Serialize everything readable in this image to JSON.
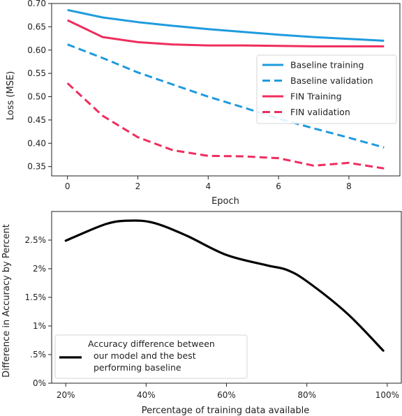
{
  "chart_data": [
    {
      "type": "line",
      "xlabel": "Epoch",
      "ylabel": "Loss (MSE)",
      "xlim": [
        -0.45,
        9.45
      ],
      "ylim": [
        0.33,
        0.7
      ],
      "x_ticks": [
        0,
        2,
        4,
        6,
        8
      ],
      "y_ticks": [
        "0.35",
        "0.40",
        "0.45",
        "0.50",
        "0.55",
        "0.60",
        "0.65",
        "0.70"
      ],
      "grid": false,
      "legend_position": "center-right",
      "x": [
        0,
        1,
        2,
        3,
        4,
        5,
        6,
        7,
        8,
        9
      ],
      "series": [
        {
          "name": "Baseline training",
          "color": "#1f9bde",
          "style": "solid",
          "values": [
            0.686,
            0.67,
            0.66,
            0.652,
            0.645,
            0.639,
            0.633,
            0.628,
            0.624,
            0.62
          ]
        },
        {
          "name": "Baseline validation",
          "color": "#1f9bde",
          "style": "dashed",
          "values": [
            0.612,
            0.583,
            0.552,
            0.526,
            0.5,
            0.477,
            0.453,
            0.432,
            0.412,
            0.391
          ]
        },
        {
          "name": "FIN Training",
          "color": "#ef2d5e",
          "style": "solid",
          "values": [
            0.664,
            0.628,
            0.617,
            0.612,
            0.61,
            0.61,
            0.609,
            0.608,
            0.608,
            0.608
          ]
        },
        {
          "name": "FIN validation",
          "color": "#ef2d5e",
          "style": "dashed",
          "values": [
            0.529,
            0.459,
            0.413,
            0.385,
            0.373,
            0.372,
            0.368,
            0.352,
            0.358,
            0.346
          ]
        }
      ]
    },
    {
      "type": "line",
      "xlabel": "Percentage of training data available",
      "ylabel": "Difference in Accuracy by Percent",
      "x_ticks": [
        "20%",
        "40%",
        "60%",
        "80%",
        "100%"
      ],
      "y_ticks": [
        "0%",
        ".5%",
        "1%",
        "1.5%",
        "2%",
        "2.5%"
      ],
      "xlim": [
        16.5,
        103.5
      ],
      "ylim": [
        0,
        3.0
      ],
      "grid": false,
      "legend_position": "bottom-left",
      "series": [
        {
          "name": "Accuracy difference between our model and the best performing baseline",
          "legend_lines": [
            "Accuracy difference between",
            "our model and the best",
            "performing baseline"
          ],
          "color": "#000000",
          "style": "solid",
          "x": [
            20,
            30,
            36,
            42,
            50,
            60,
            70,
            75,
            80,
            90,
            99
          ],
          "values": [
            2.49,
            2.78,
            2.84,
            2.8,
            2.58,
            2.24,
            2.06,
            1.98,
            1.78,
            1.22,
            0.57
          ]
        }
      ]
    }
  ]
}
